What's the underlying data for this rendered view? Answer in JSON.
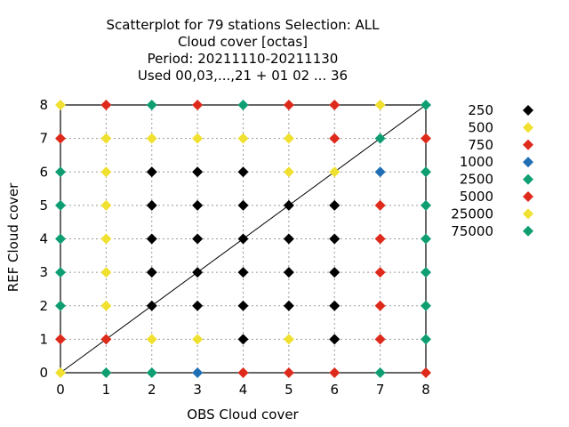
{
  "chart_data": {
    "type": "scatter",
    "title_lines": [
      "Scatterplot for   79 stations Selection: ALL",
      "Cloud cover [octas]",
      "Period: 20211110-20211130",
      "Used  00,03,...,21  + 01 02 ... 36"
    ],
    "xlabel": "OBS Cloud cover",
    "ylabel": "REF Cloud cover",
    "xlim": [
      0,
      8
    ],
    "ylim": [
      0,
      8
    ],
    "xticks": [
      "0",
      "1",
      "2",
      "3",
      "4",
      "5",
      "6",
      "7",
      "8"
    ],
    "yticks": [
      "0",
      "1",
      "2",
      "3",
      "4",
      "5",
      "6",
      "7",
      "8"
    ],
    "grid": true,
    "diagonal_line": true,
    "legend_position": "right",
    "legend": [
      {
        "label": "250",
        "color": "#000000"
      },
      {
        "label": "500",
        "color": "#f0e030"
      },
      {
        "label": "750",
        "color": "#dd2a1b"
      },
      {
        "label": "1000",
        "color": "#1f6fb5"
      },
      {
        "label": "2500",
        "color": "#0e9e72"
      },
      {
        "label": "5000",
        "color": "#dd2a1b"
      },
      {
        "label": "25000",
        "color": "#f0e030"
      },
      {
        "label": "75000",
        "color": "#0e9e72"
      }
    ],
    "points": [
      {
        "x": 0,
        "y": 0,
        "c": "#f0e030"
      },
      {
        "x": 1,
        "y": 0,
        "c": "#0e9e72"
      },
      {
        "x": 2,
        "y": 0,
        "c": "#0e9e72"
      },
      {
        "x": 3,
        "y": 0,
        "c": "#1f6fb5"
      },
      {
        "x": 4,
        "y": 0,
        "c": "#dd2a1b"
      },
      {
        "x": 5,
        "y": 0,
        "c": "#dd2a1b"
      },
      {
        "x": 6,
        "y": 0,
        "c": "#dd2a1b"
      },
      {
        "x": 7,
        "y": 0,
        "c": "#0e9e72"
      },
      {
        "x": 8,
        "y": 0,
        "c": "#dd2a1b"
      },
      {
        "x": 0,
        "y": 1,
        "c": "#dd2a1b"
      },
      {
        "x": 1,
        "y": 1,
        "c": "#dd2a1b"
      },
      {
        "x": 2,
        "y": 1,
        "c": "#f0e030"
      },
      {
        "x": 3,
        "y": 1,
        "c": "#f0e030"
      },
      {
        "x": 4,
        "y": 1,
        "c": "#000000"
      },
      {
        "x": 5,
        "y": 1,
        "c": "#f0e030"
      },
      {
        "x": 6,
        "y": 1,
        "c": "#000000"
      },
      {
        "x": 7,
        "y": 1,
        "c": "#dd2a1b"
      },
      {
        "x": 8,
        "y": 1,
        "c": "#0e9e72"
      },
      {
        "x": 0,
        "y": 2,
        "c": "#0e9e72"
      },
      {
        "x": 1,
        "y": 2,
        "c": "#f0e030"
      },
      {
        "x": 2,
        "y": 2,
        "c": "#000000"
      },
      {
        "x": 3,
        "y": 2,
        "c": "#000000"
      },
      {
        "x": 4,
        "y": 2,
        "c": "#000000"
      },
      {
        "x": 5,
        "y": 2,
        "c": "#000000"
      },
      {
        "x": 6,
        "y": 2,
        "c": "#000000"
      },
      {
        "x": 7,
        "y": 2,
        "c": "#dd2a1b"
      },
      {
        "x": 8,
        "y": 2,
        "c": "#0e9e72"
      },
      {
        "x": 0,
        "y": 3,
        "c": "#0e9e72"
      },
      {
        "x": 1,
        "y": 3,
        "c": "#f0e030"
      },
      {
        "x": 2,
        "y": 3,
        "c": "#000000"
      },
      {
        "x": 3,
        "y": 3,
        "c": "#000000"
      },
      {
        "x": 4,
        "y": 3,
        "c": "#000000"
      },
      {
        "x": 5,
        "y": 3,
        "c": "#000000"
      },
      {
        "x": 6,
        "y": 3,
        "c": "#000000"
      },
      {
        "x": 7,
        "y": 3,
        "c": "#dd2a1b"
      },
      {
        "x": 8,
        "y": 3,
        "c": "#0e9e72"
      },
      {
        "x": 0,
        "y": 4,
        "c": "#0e9e72"
      },
      {
        "x": 1,
        "y": 4,
        "c": "#f0e030"
      },
      {
        "x": 2,
        "y": 4,
        "c": "#000000"
      },
      {
        "x": 3,
        "y": 4,
        "c": "#000000"
      },
      {
        "x": 4,
        "y": 4,
        "c": "#000000"
      },
      {
        "x": 5,
        "y": 4,
        "c": "#000000"
      },
      {
        "x": 6,
        "y": 4,
        "c": "#000000"
      },
      {
        "x": 7,
        "y": 4,
        "c": "#dd2a1b"
      },
      {
        "x": 8,
        "y": 4,
        "c": "#0e9e72"
      },
      {
        "x": 0,
        "y": 5,
        "c": "#0e9e72"
      },
      {
        "x": 1,
        "y": 5,
        "c": "#f0e030"
      },
      {
        "x": 2,
        "y": 5,
        "c": "#000000"
      },
      {
        "x": 3,
        "y": 5,
        "c": "#000000"
      },
      {
        "x": 4,
        "y": 5,
        "c": "#000000"
      },
      {
        "x": 5,
        "y": 5,
        "c": "#000000"
      },
      {
        "x": 6,
        "y": 5,
        "c": "#000000"
      },
      {
        "x": 7,
        "y": 5,
        "c": "#dd2a1b"
      },
      {
        "x": 8,
        "y": 5,
        "c": "#0e9e72"
      },
      {
        "x": 0,
        "y": 6,
        "c": "#0e9e72"
      },
      {
        "x": 1,
        "y": 6,
        "c": "#f0e030"
      },
      {
        "x": 2,
        "y": 6,
        "c": "#000000"
      },
      {
        "x": 3,
        "y": 6,
        "c": "#000000"
      },
      {
        "x": 4,
        "y": 6,
        "c": "#000000"
      },
      {
        "x": 5,
        "y": 6,
        "c": "#f0e030"
      },
      {
        "x": 6,
        "y": 6,
        "c": "#f0e030"
      },
      {
        "x": 7,
        "y": 6,
        "c": "#1f6fb5"
      },
      {
        "x": 8,
        "y": 6,
        "c": "#0e9e72"
      },
      {
        "x": 0,
        "y": 7,
        "c": "#dd2a1b"
      },
      {
        "x": 1,
        "y": 7,
        "c": "#f0e030"
      },
      {
        "x": 2,
        "y": 7,
        "c": "#f0e030"
      },
      {
        "x": 3,
        "y": 7,
        "c": "#f0e030"
      },
      {
        "x": 4,
        "y": 7,
        "c": "#f0e030"
      },
      {
        "x": 5,
        "y": 7,
        "c": "#f0e030"
      },
      {
        "x": 6,
        "y": 7,
        "c": "#dd2a1b"
      },
      {
        "x": 7,
        "y": 7,
        "c": "#0e9e72"
      },
      {
        "x": 8,
        "y": 7,
        "c": "#dd2a1b"
      },
      {
        "x": 0,
        "y": 8,
        "c": "#f0e030"
      },
      {
        "x": 1,
        "y": 8,
        "c": "#dd2a1b"
      },
      {
        "x": 2,
        "y": 8,
        "c": "#0e9e72"
      },
      {
        "x": 3,
        "y": 8,
        "c": "#dd2a1b"
      },
      {
        "x": 4,
        "y": 8,
        "c": "#0e9e72"
      },
      {
        "x": 5,
        "y": 8,
        "c": "#dd2a1b"
      },
      {
        "x": 6,
        "y": 8,
        "c": "#dd2a1b"
      },
      {
        "x": 7,
        "y": 8,
        "c": "#f0e030"
      },
      {
        "x": 8,
        "y": 8,
        "c": "#0e9e72"
      }
    ]
  }
}
